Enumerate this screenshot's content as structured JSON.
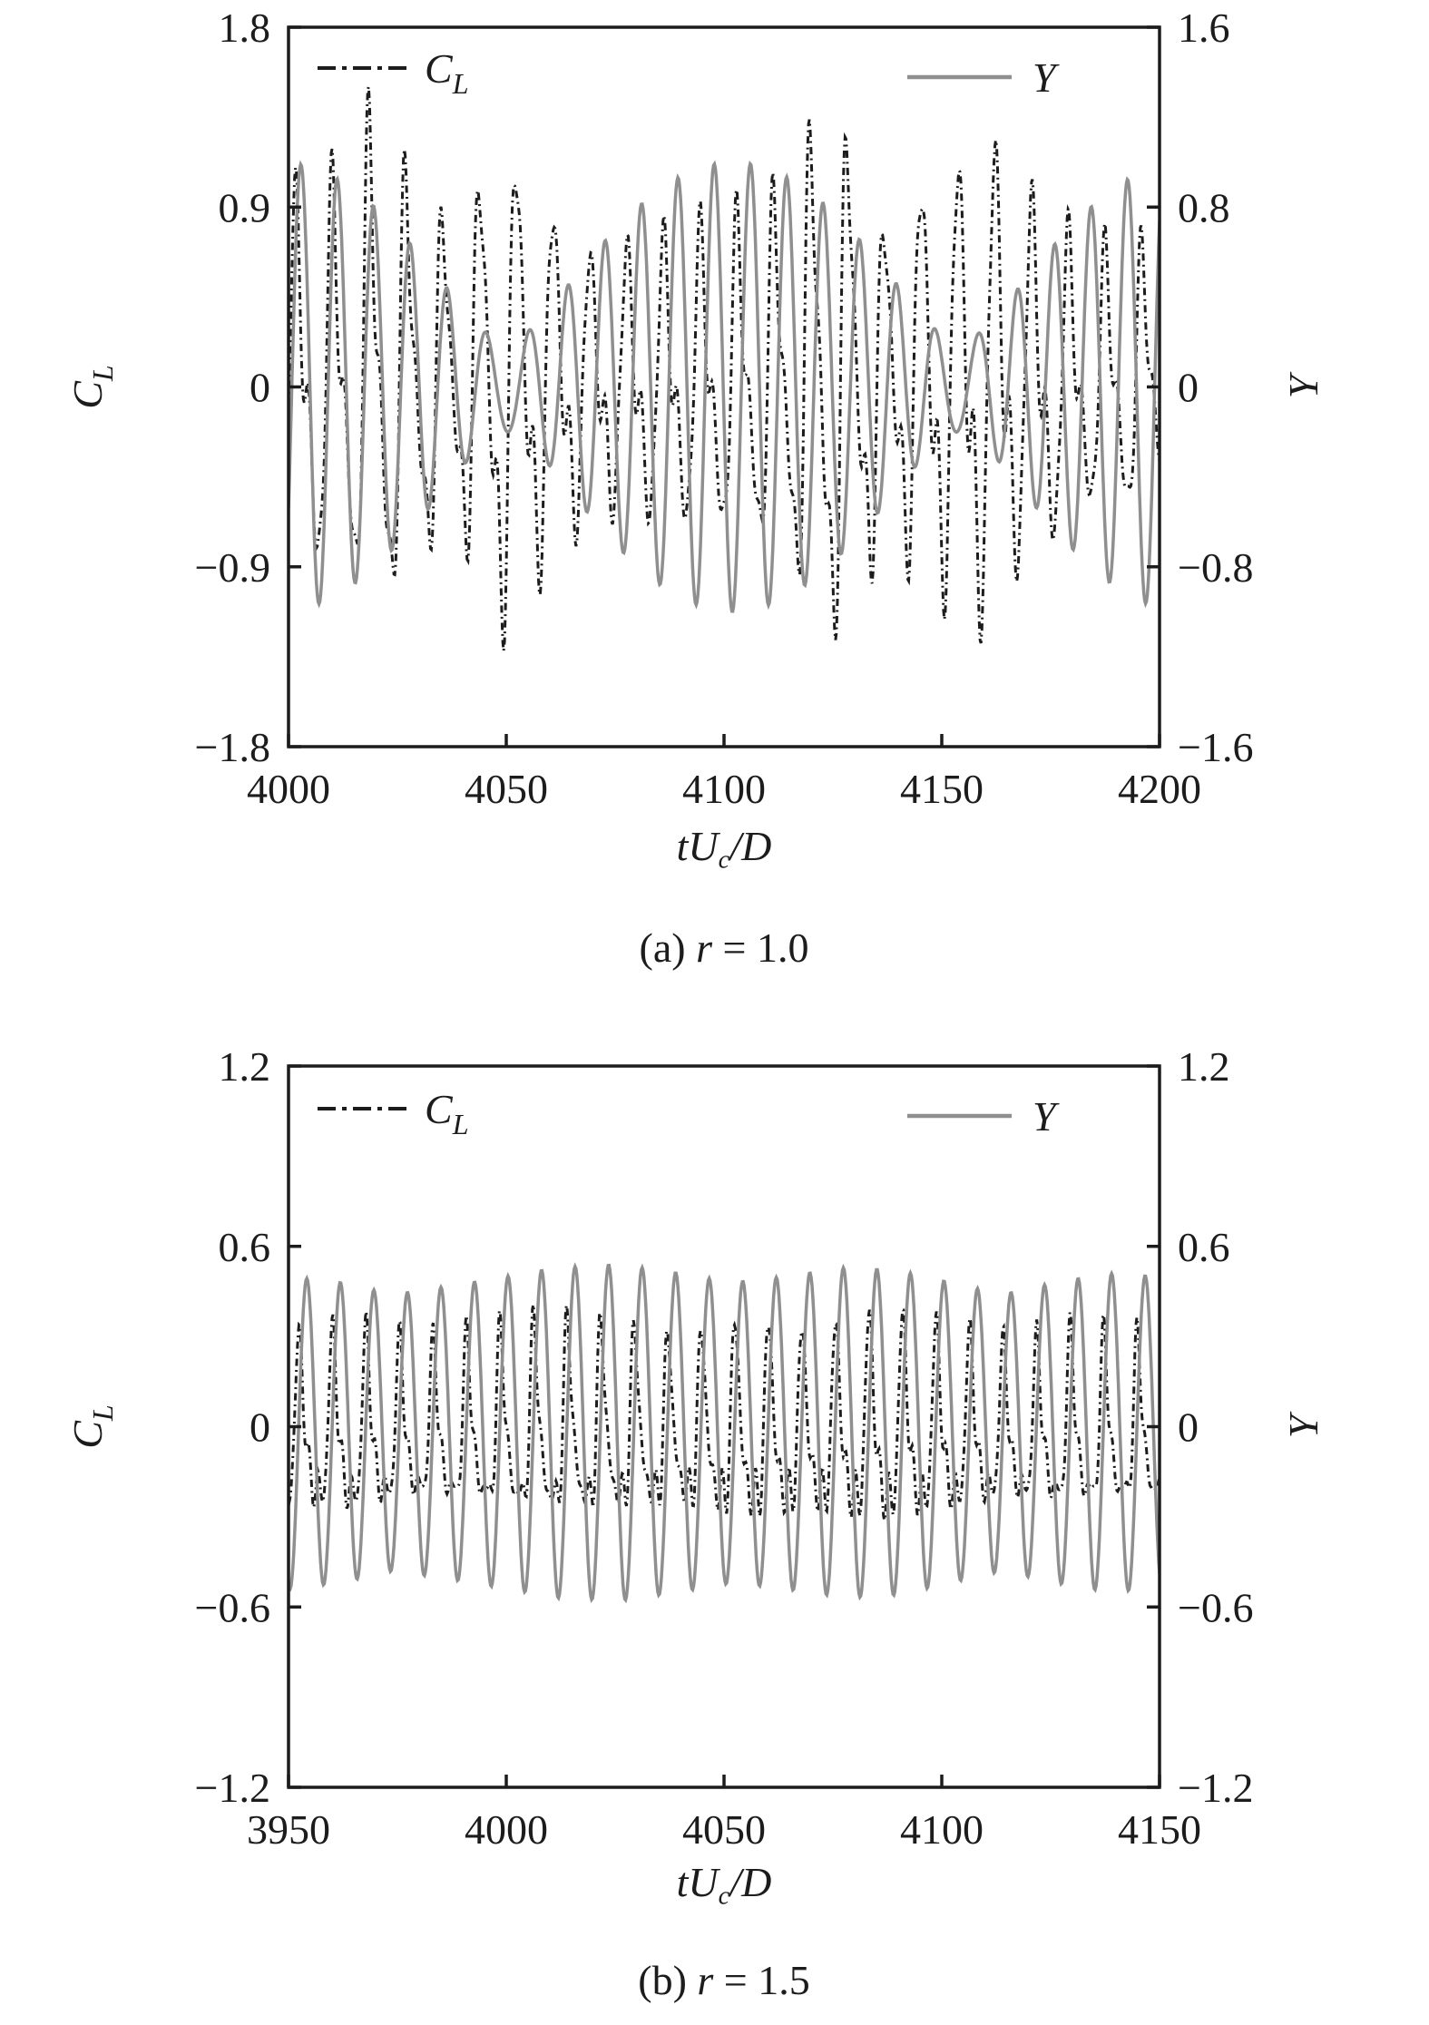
{
  "background": "#ffffff",
  "text_color": "#1c1c1c",
  "chart_data": [
    {
      "type": "line",
      "panel": "a",
      "caption": {
        "prefix": "(a) ",
        "var": "r",
        "rest": " = 1.0"
      },
      "xlabel": {
        "pre": "tU",
        "sub": "c",
        "post": "/D"
      },
      "x_range": [
        4000,
        4200
      ],
      "x_ticks": [
        4000,
        4050,
        4100,
        4150,
        4200
      ],
      "left_axis": {
        "label": {
          "main": "C",
          "sub": "L"
        },
        "range": [
          -1.8,
          1.8
        ],
        "tick_labels": [
          "1.8",
          "0.9",
          "0",
          "−0.9",
          "−1.8"
        ],
        "tick_values": [
          1.8,
          0.9,
          0,
          -0.9,
          -1.8
        ]
      },
      "right_axis": {
        "label": {
          "main": "Y"
        },
        "range": [
          -1.6,
          1.6
        ],
        "tick_labels": [
          "1.6",
          "0.8",
          "0",
          "−0.8",
          "−1.6"
        ],
        "tick_values": [
          1.6,
          0.8,
          0,
          -0.8,
          -1.6
        ]
      },
      "legend": [
        {
          "main": "C",
          "sub": "L",
          "style": "dashdot",
          "color": "#1c1c1c"
        },
        {
          "main": "Y",
          "style": "solid",
          "color": "#8f8f8f"
        }
      ],
      "series": [
        {
          "name": "C_L",
          "axis": "left",
          "color": "#1c1c1c",
          "style": "dashdot",
          "width": 3,
          "signal": {
            "t_ref": 4002,
            "step": 0.2,
            "offset": 0,
            "components": [
              {
                "amp": 0.8,
                "period": 8.45,
                "phase": 0
              },
              {
                "amp": 0.32,
                "period": 4.225,
                "phase": 1.2
              },
              {
                "amp": 0.18,
                "period": 2.73,
                "phase": 0.5
              }
            ],
            "envelope": [
              [
                4000,
                0.9
              ],
              [
                4008,
                1.0
              ],
              [
                4014,
                0.95
              ],
              [
                4020,
                1.38
              ],
              [
                4026,
                1.05
              ],
              [
                4034,
                0.85
              ],
              [
                4040,
                0.8
              ],
              [
                4048,
                1.3
              ],
              [
                4055,
                1.05
              ],
              [
                4062,
                0.85
              ],
              [
                4070,
                0.65
              ],
              [
                4080,
                0.7
              ],
              [
                4090,
                0.75
              ],
              [
                4100,
                0.8
              ],
              [
                4108,
                0.85
              ],
              [
                4116,
                1.0
              ],
              [
                4123,
                1.4
              ],
              [
                4130,
                1.15
              ],
              [
                4138,
                0.75
              ],
              [
                4146,
                1.05
              ],
              [
                4153,
                1.1
              ],
              [
                4160,
                1.25
              ],
              [
                4168,
                0.95
              ],
              [
                4175,
                0.85
              ],
              [
                4183,
                0.65
              ],
              [
                4192,
                0.7
              ],
              [
                4200,
                0.65
              ]
            ]
          }
        },
        {
          "name": "Y",
          "axis": "right",
          "color": "#8f8f8f",
          "style": "solid",
          "width": 3.5,
          "signal": {
            "t_ref": 4003,
            "step": 0.2,
            "offset": 0,
            "components": [
              {
                "amp": 0.6,
                "period": 8.6,
                "phase": 0
              },
              {
                "amp": 0.4,
                "period": 7.943,
                "phase": 0.3
              }
            ],
            "envelope": null
          }
        }
      ]
    },
    {
      "type": "line",
      "panel": "b",
      "caption": {
        "prefix": "(b) ",
        "var": "r",
        "rest": " = 1.5"
      },
      "xlabel": {
        "pre": "tU",
        "sub": "c",
        "post": "/D"
      },
      "x_range": [
        3950,
        4150
      ],
      "x_ticks": [
        3950,
        4000,
        4050,
        4100,
        4150
      ],
      "left_axis": {
        "label": {
          "main": "C",
          "sub": "L"
        },
        "range": [
          -1.2,
          1.2
        ],
        "tick_labels": [
          "1.2",
          "0.6",
          "0",
          "−0.6",
          "−1.2"
        ],
        "tick_values": [
          1.2,
          0.6,
          0,
          -0.6,
          -1.2
        ]
      },
      "right_axis": {
        "label": {
          "main": "Y"
        },
        "range": [
          -1.2,
          1.2
        ],
        "tick_labels": [
          "1.2",
          "0.6",
          "0",
          "−0.6",
          "−1.2"
        ],
        "tick_values": [
          1.2,
          0.6,
          0,
          -0.6,
          -1.2
        ]
      },
      "legend": [
        {
          "main": "C",
          "sub": "L",
          "style": "dashdot",
          "color": "#1c1c1c"
        },
        {
          "main": "Y",
          "style": "solid",
          "color": "#8f8f8f"
        }
      ],
      "series": [
        {
          "name": "C_L",
          "axis": "left",
          "color": "#1c1c1c",
          "style": "dashdot",
          "width": 3,
          "signal": {
            "t_ref": 3953,
            "step": 0.2,
            "offset": -0.05,
            "components": [
              {
                "amp": 0.62,
                "period": 7.7,
                "phase": 0.3
              },
              {
                "amp": 0.28,
                "period": 3.85,
                "phase": 0.9
              },
              {
                "amp": 0.18,
                "period": 2.567,
                "phase": 2.1
              },
              {
                "amp": 0.1,
                "period": 1.9,
                "phase": 0.7
              }
            ],
            "envelope": [
              [
                3950,
                0.36
              ],
              [
                3965,
                0.4
              ],
              [
                3980,
                0.34
              ],
              [
                3995,
                0.38
              ],
              [
                4010,
                0.42
              ],
              [
                4025,
                0.4
              ],
              [
                4040,
                0.36
              ],
              [
                4055,
                0.42
              ],
              [
                4070,
                0.38
              ],
              [
                4085,
                0.44
              ],
              [
                4100,
                0.4
              ],
              [
                4115,
                0.34
              ],
              [
                4130,
                0.38
              ],
              [
                4150,
                0.36
              ]
            ]
          }
        },
        {
          "name": "Y",
          "axis": "right",
          "color": "#8f8f8f",
          "style": "solid",
          "width": 3.5,
          "signal": {
            "t_ref": 3954.2,
            "step": 0.2,
            "offset": -0.02,
            "components": [
              {
                "amp": 1.0,
                "period": 7.7,
                "phase": 0
              }
            ],
            "envelope": [
              [
                3950,
                0.52
              ],
              [
                3962,
                0.5
              ],
              [
                3974,
                0.46
              ],
              [
                3988,
                0.49
              ],
              [
                4000,
                0.52
              ],
              [
                4012,
                0.55
              ],
              [
                4026,
                0.56
              ],
              [
                4040,
                0.53
              ],
              [
                4052,
                0.5
              ],
              [
                4064,
                0.52
              ],
              [
                4078,
                0.55
              ],
              [
                4090,
                0.54
              ],
              [
                4102,
                0.5
              ],
              [
                4114,
                0.46
              ],
              [
                4126,
                0.5
              ],
              [
                4138,
                0.53
              ],
              [
                4150,
                0.52
              ]
            ]
          }
        }
      ]
    }
  ]
}
